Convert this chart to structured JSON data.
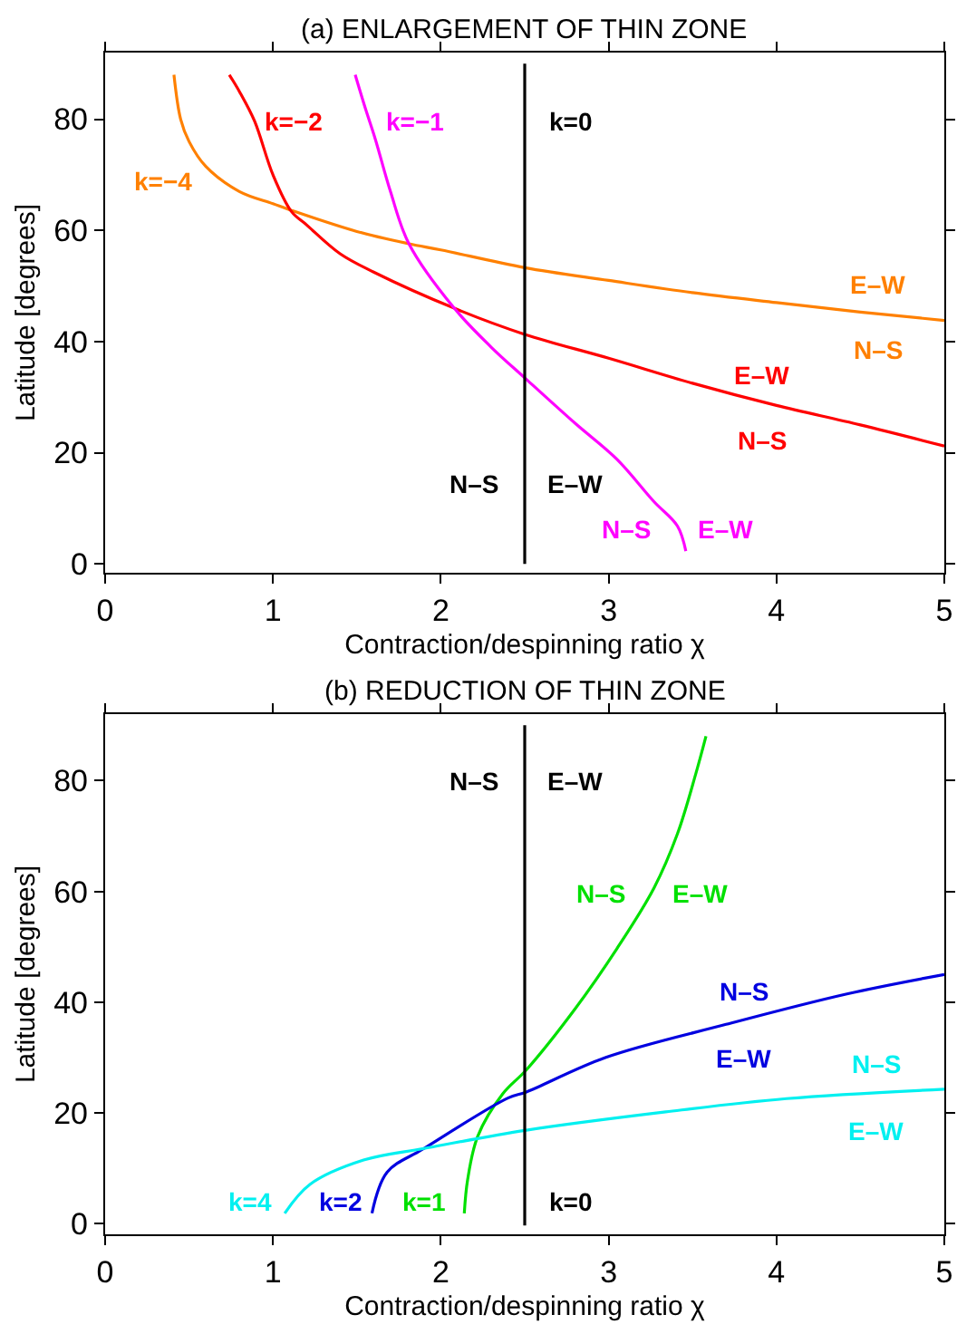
{
  "chart_data": [
    {
      "type": "line",
      "title": "(a) ENLARGEMENT OF THIN ZONE",
      "xlabel": "Contraction/despinning ratio χ",
      "ylabel": "Latitude [degrees]",
      "xlim": [
        0,
        5
      ],
      "ylim": [
        -1.6,
        92
      ],
      "xticks": [
        0,
        1,
        2,
        3,
        4,
        5
      ],
      "yticks": [
        0,
        20,
        40,
        60,
        80
      ],
      "legend": false,
      "marker": "none",
      "line_style": "solid",
      "series": [
        {
          "name": "k=−4",
          "color": "#ff8000",
          "x": [
            0.41,
            0.45,
            0.5,
            0.6,
            0.8,
            1.0,
            1.11,
            1.5,
            1.81,
            2.0,
            2.5,
            3.0,
            3.5,
            4.0,
            4.5,
            5.0
          ],
          "values": [
            88,
            80,
            76,
            71.5,
            67,
            64.8,
            63.6,
            59.8,
            57.6,
            56.5,
            53.3,
            51,
            48.8,
            47,
            45.3,
            43.8
          ]
        },
        {
          "name": "k=−2",
          "color": "#ff0000",
          "x": [
            0.74,
            0.8,
            0.89,
            1.0,
            1.11,
            1.2,
            1.4,
            1.6,
            2.08,
            2.5,
            3.0,
            3.5,
            4.0,
            4.5,
            5.0
          ],
          "values": [
            88,
            85,
            79.7,
            70,
            63.4,
            61,
            55.8,
            52.5,
            46,
            41.3,
            37,
            32.5,
            28.5,
            25,
            21.2
          ]
        },
        {
          "name": "k=−1",
          "color": "#ff00ff",
          "x": [
            1.49,
            1.55,
            1.61,
            1.7,
            1.81,
            2.08,
            2.3,
            2.51,
            2.8,
            3.05,
            3.27,
            3.41,
            3.46
          ],
          "values": [
            88,
            82,
            76.4,
            67,
            57.6,
            46,
            39,
            33.2,
            25.3,
            18.8,
            11.2,
            6.8,
            2.3
          ]
        },
        {
          "name": "k=0",
          "color": "#000000",
          "x": [
            2.5,
            2.5
          ],
          "values": [
            0,
            90
          ]
        }
      ],
      "annotations": [
        "E–W",
        "N–S",
        "E–W",
        "N–S",
        "N–S",
        "E–W",
        "N–S",
        "E–W"
      ]
    },
    {
      "type": "line",
      "title": "(b) REDUCTION OF THIN ZONE",
      "xlabel": "Contraction/despinning ratio χ",
      "ylabel": "Latitude [degrees]",
      "xlim": [
        0,
        5
      ],
      "ylim": [
        -1.9,
        92
      ],
      "xticks": [
        0,
        1,
        2,
        3,
        4,
        5
      ],
      "yticks": [
        0,
        20,
        40,
        60,
        80
      ],
      "legend": false,
      "marker": "none",
      "line_style": "solid",
      "series": [
        {
          "name": "k=1",
          "color": "#00e000",
          "x": [
            2.14,
            2.16,
            2.22,
            2.37,
            2.51,
            2.8,
            3.05,
            3.27,
            3.41,
            3.52,
            3.58
          ],
          "values": [
            1.9,
            8,
            15.8,
            23.5,
            27.8,
            38.8,
            49.7,
            60.6,
            70.4,
            81.3,
            88
          ]
        },
        {
          "name": "k=2",
          "color": "#0000e0",
          "x": [
            1.59,
            1.68,
            1.9,
            2.4,
            2.51,
            2.98,
            3.7,
            4.42,
            5.0
          ],
          "values": [
            1.9,
            9.3,
            13.6,
            22.7,
            23.8,
            30,
            36,
            41.5,
            45
          ]
        },
        {
          "name": "k=4",
          "color": "#00f0f0",
          "x": [
            1.07,
            1.22,
            1.54,
            1.9,
            2.51,
            3.34,
            4.06,
            5.0
          ],
          "values": [
            1.9,
            7.1,
            11.5,
            13.6,
            16.9,
            20.2,
            22.6,
            24.3
          ]
        },
        {
          "name": "k=0",
          "color": "#000000",
          "x": [
            2.5,
            2.5
          ],
          "values": [
            -0.3,
            90
          ]
        }
      ],
      "annotations": [
        "N–S",
        "E–W",
        "N–S",
        "E–W",
        "N–S",
        "E–W",
        "N–S",
        "E–W"
      ]
    }
  ]
}
